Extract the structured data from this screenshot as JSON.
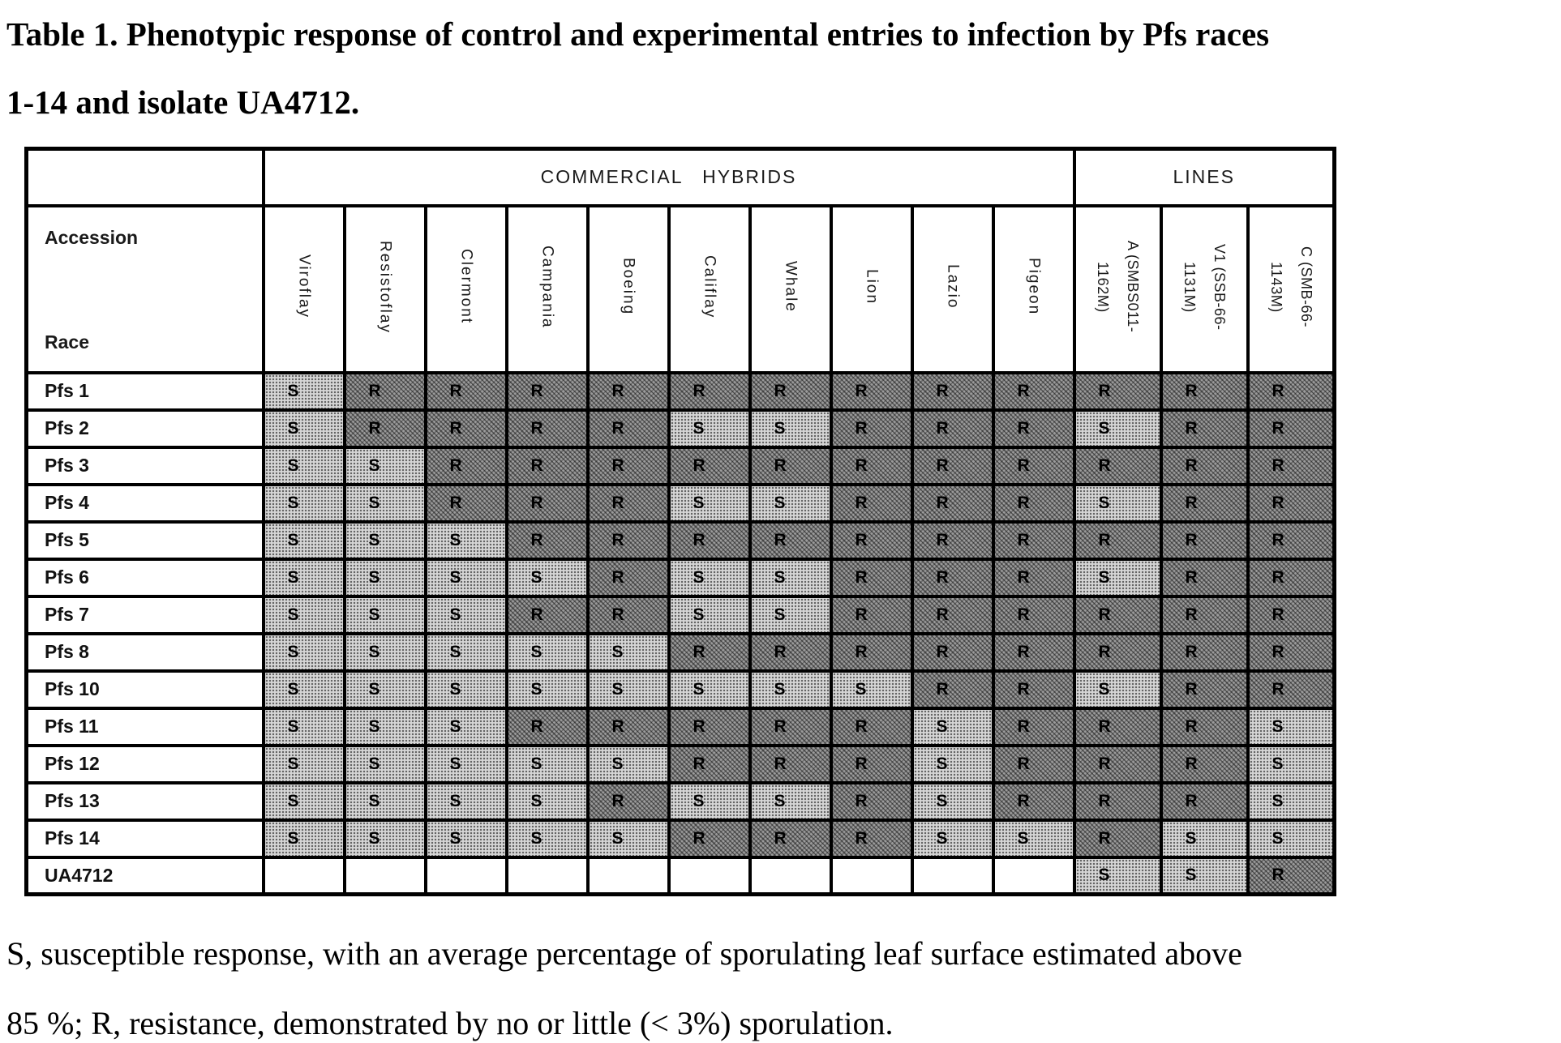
{
  "title": "Table 1. Phenotypic response of control and experimental entries to infection by Pfs races\n1-14 and isolate UA4712.",
  "table": {
    "corner_label_top": "Accession",
    "corner_label_bottom": "Race",
    "group_headers": [
      {
        "label": "COMMERCIAL HYBRIDS",
        "span": 10
      },
      {
        "label": "LINES",
        "span": 3
      }
    ],
    "columns": [
      "Viroflay",
      "Resistoflay",
      "Clermont",
      "Campania",
      "Boeing",
      "Califlay",
      "Whale",
      "Lion",
      "Lazio",
      "Pigeon",
      "A (SMBS011-\n1162M)",
      "V1 (SSB-66-\n1131M)",
      "C (SMB-66-\n1143M)"
    ],
    "rows": [
      {
        "label": "Pfs 1",
        "values": [
          "S",
          "R",
          "R",
          "R",
          "R",
          "R",
          "R",
          "R",
          "R",
          "R",
          "R",
          "R",
          "R"
        ]
      },
      {
        "label": "Pfs 2",
        "values": [
          "S",
          "R",
          "R",
          "R",
          "R",
          "S",
          "S",
          "R",
          "R",
          "R",
          "S",
          "R",
          "R"
        ]
      },
      {
        "label": "Pfs 3",
        "values": [
          "S",
          "S",
          "R",
          "R",
          "R",
          "R",
          "R",
          "R",
          "R",
          "R",
          "R",
          "R",
          "R"
        ]
      },
      {
        "label": "Pfs 4",
        "values": [
          "S",
          "S",
          "R",
          "R",
          "R",
          "S",
          "S",
          "R",
          "R",
          "R",
          "S",
          "R",
          "R"
        ]
      },
      {
        "label": "Pfs 5",
        "values": [
          "S",
          "S",
          "S",
          "R",
          "R",
          "R",
          "R",
          "R",
          "R",
          "R",
          "R",
          "R",
          "R"
        ]
      },
      {
        "label": "Pfs 6",
        "values": [
          "S",
          "S",
          "S",
          "S",
          "R",
          "S",
          "S",
          "R",
          "R",
          "R",
          "S",
          "R",
          "R"
        ]
      },
      {
        "label": "Pfs 7",
        "values": [
          "S",
          "S",
          "S",
          "R",
          "R",
          "S",
          "S",
          "R",
          "R",
          "R",
          "R",
          "R",
          "R"
        ]
      },
      {
        "label": "Pfs 8",
        "values": [
          "S",
          "S",
          "S",
          "S",
          "S",
          "R",
          "R",
          "R",
          "R",
          "R",
          "R",
          "R",
          "R"
        ]
      },
      {
        "label": "Pfs 10",
        "values": [
          "S",
          "S",
          "S",
          "S",
          "S",
          "S",
          "S",
          "S",
          "R",
          "R",
          "S",
          "R",
          "R"
        ]
      },
      {
        "label": "Pfs 11",
        "values": [
          "S",
          "S",
          "S",
          "R",
          "R",
          "R",
          "R",
          "R",
          "S",
          "R",
          "R",
          "R",
          "S"
        ]
      },
      {
        "label": "Pfs 12",
        "values": [
          "S",
          "S",
          "S",
          "S",
          "S",
          "R",
          "R",
          "R",
          "S",
          "R",
          "R",
          "R",
          "S"
        ]
      },
      {
        "label": "Pfs 13",
        "values": [
          "S",
          "S",
          "S",
          "S",
          "R",
          "S",
          "S",
          "R",
          "S",
          "R",
          "R",
          "R",
          "S"
        ]
      },
      {
        "label": "Pfs 14",
        "values": [
          "S",
          "S",
          "S",
          "S",
          "S",
          "R",
          "R",
          "R",
          "S",
          "S",
          "R",
          "S",
          "S"
        ]
      },
      {
        "label": "UA4712",
        "values": [
          "",
          "",
          "",
          "",
          "",
          "",
          "",
          "",
          "",
          "",
          "S",
          "S",
          "R"
        ]
      }
    ],
    "cell_legend": {
      "S": "susceptible",
      "R": "resistant"
    }
  },
  "colors": {
    "s_cell": "#d6d6d6",
    "r_cell": "#9b9b9b",
    "border": "#000000",
    "text": "#000000"
  },
  "footnote": "S, susceptible response, with an average percentage of sporulating leaf surface estimated above\n85 %; R, resistance, demonstrated by no or little (< 3%) sporulation."
}
